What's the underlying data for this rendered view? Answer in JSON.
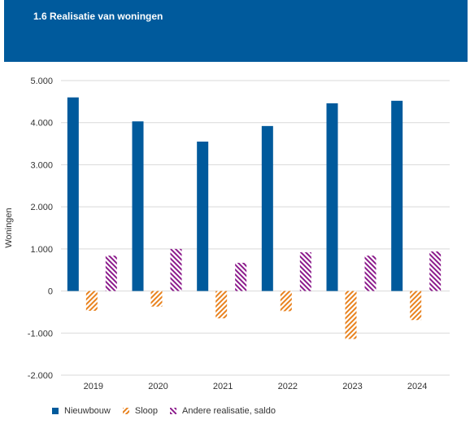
{
  "title": "1.6 Realisatie van woningen",
  "colors": {
    "header_bg": "#005a9c",
    "nieuwbouw": "#005a9c",
    "sloop": "#e8821e",
    "andere": "#8b1a8b"
  },
  "chart_data": {
    "type": "bar",
    "title": "1.6 Realisatie van woningen",
    "xlabel": "",
    "ylabel": "Woningen",
    "categories": [
      "2019",
      "2020",
      "2021",
      "2022",
      "2023",
      "2024"
    ],
    "ylim": [
      -2000,
      5000
    ],
    "yticks": [
      5000,
      4000,
      3000,
      2000,
      1000,
      0,
      -1000,
      -2000
    ],
    "ytick_labels": [
      "5.000",
      "4.000",
      "3.000",
      "2.000",
      "1.000",
      "0",
      "-1.000",
      "-2.000"
    ],
    "grid": true,
    "legend_position": "bottom-left",
    "series": [
      {
        "name": "Nieuwbouw",
        "pattern": "solid",
        "values": [
          4600,
          4030,
          3550,
          3920,
          4460,
          4520
        ]
      },
      {
        "name": "Sloop",
        "pattern": "hatched",
        "values": [
          -470,
          -370,
          -650,
          -480,
          -1140,
          -690
        ]
      },
      {
        "name": "Andere realisatie, saldo",
        "pattern": "hatched",
        "values": [
          840,
          1000,
          670,
          920,
          840,
          940
        ]
      }
    ]
  }
}
